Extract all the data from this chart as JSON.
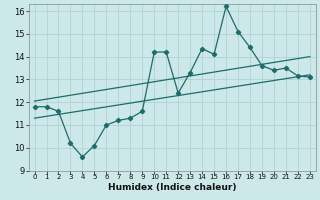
{
  "title": "",
  "xlabel": "Humidex (Indice chaleur)",
  "ylabel": "",
  "xlim": [
    -0.5,
    23.5
  ],
  "ylim": [
    9,
    16.3
  ],
  "xticks": [
    0,
    1,
    2,
    3,
    4,
    5,
    6,
    7,
    8,
    9,
    10,
    11,
    12,
    13,
    14,
    15,
    16,
    17,
    18,
    19,
    20,
    21,
    22,
    23
  ],
  "yticks": [
    9,
    10,
    11,
    12,
    13,
    14,
    15,
    16
  ],
  "bg_color": "#cce8e8",
  "line_color": "#1e6b6b",
  "grid_color": "#aacfcf",
  "main_x": [
    0,
    1,
    2,
    3,
    4,
    5,
    6,
    7,
    8,
    9,
    10,
    11,
    12,
    13,
    14,
    15,
    16,
    17,
    18,
    19,
    20,
    21,
    22,
    23
  ],
  "main_y": [
    11.8,
    11.8,
    11.6,
    10.2,
    9.6,
    10.1,
    11.0,
    11.2,
    11.3,
    11.6,
    14.2,
    14.2,
    12.4,
    13.3,
    14.35,
    14.1,
    16.2,
    15.1,
    14.4,
    13.6,
    13.4,
    13.5,
    13.15,
    13.1
  ],
  "upper_line_x": [
    0,
    23
  ],
  "upper_line_y": [
    12.05,
    14.0
  ],
  "lower_line_x": [
    0,
    23
  ],
  "lower_line_y": [
    11.3,
    13.2
  ],
  "marker": "D",
  "marker_size": 2.2,
  "linewidth": 0.9
}
